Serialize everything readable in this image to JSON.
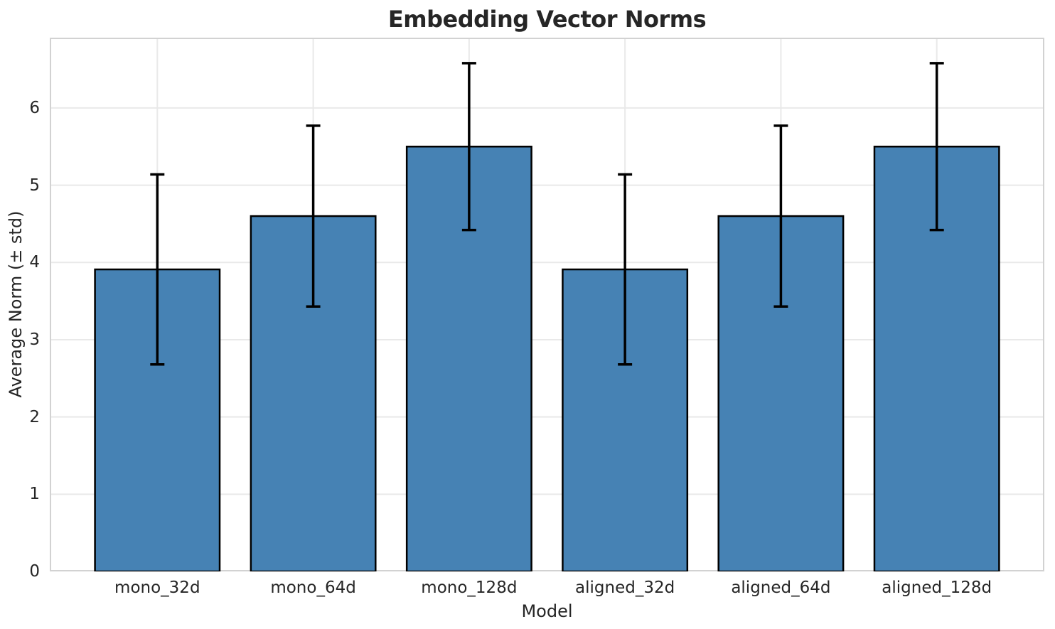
{
  "chart_data": {
    "type": "bar",
    "title": "Embedding Vector Norms",
    "xlabel": "Model",
    "ylabel": "Average Norm (± std)",
    "categories": [
      "mono_32d",
      "mono_64d",
      "mono_128d",
      "aligned_32d",
      "aligned_64d",
      "aligned_128d"
    ],
    "values": [
      3.91,
      4.6,
      5.5,
      3.91,
      4.6,
      5.5
    ],
    "errors": [
      1.23,
      1.17,
      1.08,
      1.23,
      1.17,
      1.08
    ],
    "yticks": [
      0,
      1,
      2,
      3,
      4,
      5,
      6
    ],
    "ylim": [
      0,
      6.91
    ],
    "grid": true,
    "legend": "none",
    "bar_color": "#4682b4",
    "bar_edge_color": "#000000",
    "error_color": "#000000",
    "grid_color": "#e9e9e9",
    "spine_color": "#d2d2d2",
    "text_color": "#262626"
  }
}
